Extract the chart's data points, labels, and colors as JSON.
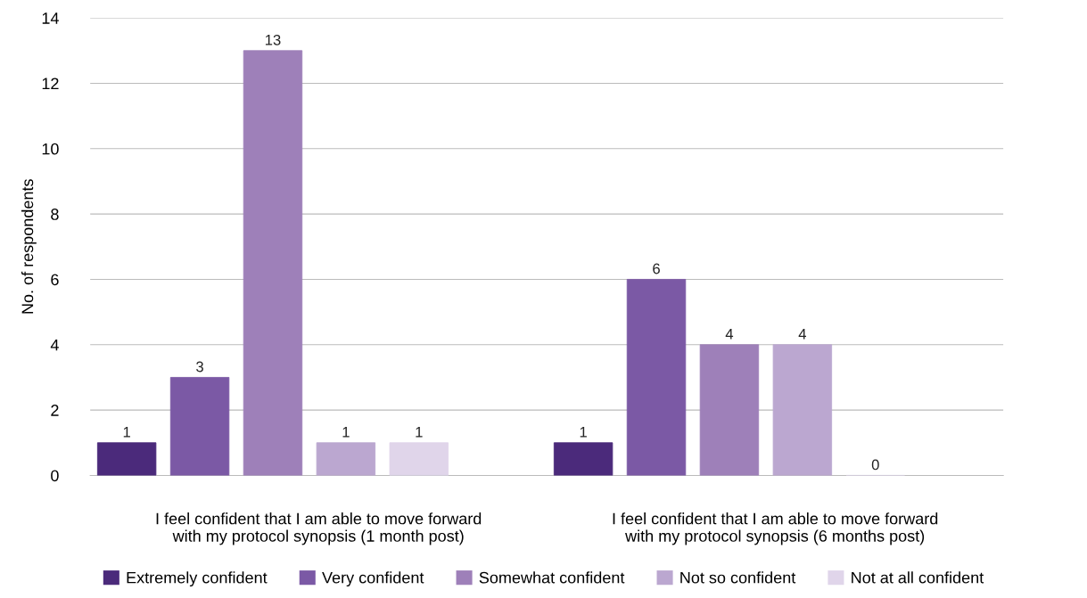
{
  "chart_data": {
    "type": "bar",
    "ylabel": "No. of respondents",
    "categories": [
      "I feel confident that I am able to move forward with my protocol synopsis (1 month post)",
      "I feel confident that I am able to move forward with my protocol synopsis (6 months post)"
    ],
    "series": [
      {
        "name": "Extremely confident",
        "color": "#4b2a7b",
        "values": [
          1,
          1
        ]
      },
      {
        "name": "Very confident",
        "color": "#7b59a5",
        "values": [
          3,
          6
        ]
      },
      {
        "name": "Somewhat confident",
        "color": "#9e80b9",
        "values": [
          13,
          4
        ]
      },
      {
        "name": "Not so confident",
        "color": "#bba7d0",
        "values": [
          1,
          4
        ]
      },
      {
        "name": "Not at all confident",
        "color": "#e0d5ea",
        "values": [
          1,
          0
        ]
      }
    ],
    "ylim": [
      0,
      14
    ],
    "yticks": [
      0,
      2,
      4,
      6,
      8,
      10,
      12,
      14
    ],
    "grid": "y",
    "legend": "bottom",
    "data_labels": true
  }
}
